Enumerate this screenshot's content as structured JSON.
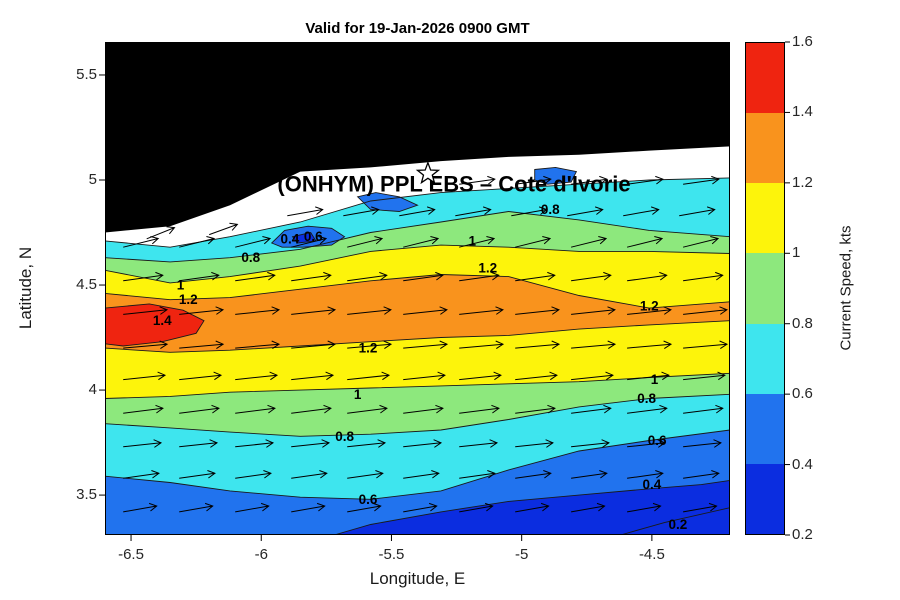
{
  "chart_data": {
    "type": "filled_contour_with_quiver",
    "title": "Valid for 19-Jan-2026 0900 GMT",
    "xlabel": "Longitude, E",
    "ylabel": "Latitude, N",
    "xlim": [
      -6.6,
      -4.2
    ],
    "ylim": [
      3.31,
      5.657
    ],
    "x_ticks": [
      -6.5,
      -6,
      -5.5,
      -5,
      -4.5
    ],
    "y_ticks": [
      5.5,
      5,
      4.5,
      4,
      3.5
    ],
    "grid": false,
    "land_color": "#000000",
    "levels": [
      0.2,
      0.4,
      0.6,
      0.8,
      1.0,
      1.2,
      1.4,
      1.6
    ],
    "level_colors": [
      "#0B2DE0",
      "#2173EE",
      "#3EE5EE",
      "#8DE87D",
      "#FDF40B",
      "#F9931D",
      "#EF2410"
    ],
    "colorbar": {
      "label": "Current Speed, kts",
      "range": [
        0.2,
        1.6
      ],
      "ticks": [
        1.6,
        1.4,
        1.2,
        1,
        0.8,
        0.6,
        0.4,
        0.2
      ]
    },
    "lon_samples": [
      -6.6,
      -6.35,
      -6.12,
      -5.85,
      -5.58,
      -5.31,
      -5.05,
      -4.78,
      -4.51,
      -4.2
    ],
    "contours": {
      "land_bottom": [
        4.75,
        4.78,
        4.88,
        5.04,
        5.06,
        5.09,
        5.11,
        5.12,
        5.14,
        5.16
      ],
      "data_edge": [
        4.71,
        4.68,
        4.73,
        4.8,
        4.9,
        4.94,
        4.96,
        4.98,
        5.0,
        5.01
      ],
      "c08_upper": [
        4.63,
        4.61,
        4.63,
        4.67,
        4.75,
        4.8,
        4.85,
        4.81,
        4.76,
        4.73
      ],
      "c10_upper": [
        4.57,
        4.51,
        4.54,
        4.59,
        4.66,
        4.69,
        4.68,
        4.66,
        4.66,
        4.65
      ],
      "c12_upper": [
        4.46,
        4.43,
        4.44,
        4.48,
        4.52,
        4.55,
        4.54,
        4.45,
        4.39,
        4.42
      ],
      "c12_lower": [
        4.2,
        4.18,
        4.19,
        4.21,
        4.23,
        4.25,
        4.26,
        4.29,
        4.31,
        4.33
      ],
      "c10_lower": [
        3.96,
        3.97,
        3.99,
        4.0,
        4.01,
        4.02,
        4.03,
        4.04,
        4.06,
        4.08
      ],
      "c08_lower": [
        3.84,
        3.82,
        3.8,
        3.78,
        3.79,
        3.81,
        3.86,
        3.92,
        3.96,
        3.98
      ],
      "c06_lower": [
        3.59,
        3.56,
        3.52,
        3.49,
        3.48,
        3.52,
        3.62,
        3.71,
        3.76,
        3.81
      ]
    },
    "bands": [
      {
        "top": "data_edge",
        "bottom": "c08_upper",
        "color": 2
      },
      {
        "top": "c08_upper",
        "bottom": "c10_upper",
        "color": 3
      },
      {
        "top": "c10_upper",
        "bottom": "c12_upper",
        "color": 4
      },
      {
        "top": "c12_upper",
        "bottom": "c12_lower",
        "color": 5
      },
      {
        "top": "c12_lower",
        "bottom": "c10_lower",
        "color": 4
      },
      {
        "top": "c10_lower",
        "bottom": "c08_lower",
        "color": 3
      },
      {
        "top": "c08_lower",
        "bottom": "c06_lower",
        "color": 2
      },
      {
        "top": "c06_lower",
        "bottom": null,
        "color": 1
      }
    ],
    "regions": {
      "low_speed_bottom": [
        [
          -5.72,
          3.31
        ],
        [
          -5.58,
          3.36
        ],
        [
          -5.31,
          3.42
        ],
        [
          -5.05,
          3.47
        ],
        [
          -4.78,
          3.5
        ],
        [
          -4.51,
          3.53
        ],
        [
          -4.31,
          3.55
        ],
        [
          -4.2,
          3.57
        ],
        [
          -4.2,
          3.31
        ]
      ],
      "red_core": [
        [
          -6.6,
          4.39
        ],
        [
          -6.43,
          4.41
        ],
        [
          -6.3,
          4.38
        ],
        [
          -6.22,
          4.33
        ],
        [
          -6.25,
          4.27
        ],
        [
          -6.38,
          4.23
        ],
        [
          -6.53,
          4.21
        ],
        [
          -6.6,
          4.22
        ]
      ],
      "blue_pockets": [
        [
          [
            -5.96,
            4.7
          ],
          [
            -5.91,
            4.76
          ],
          [
            -5.82,
            4.78
          ],
          [
            -5.73,
            4.77
          ],
          [
            -5.68,
            4.73
          ],
          [
            -5.73,
            4.69
          ],
          [
            -5.84,
            4.68
          ],
          [
            -5.92,
            4.68
          ]
        ],
        [
          [
            -5.63,
            4.92
          ],
          [
            -5.56,
            4.94
          ],
          [
            -5.47,
            4.92
          ],
          [
            -5.4,
            4.88
          ],
          [
            -5.47,
            4.85
          ],
          [
            -5.58,
            4.86
          ]
        ],
        [
          [
            -4.95,
            5.05
          ],
          [
            -4.87,
            5.06
          ],
          [
            -4.79,
            5.04
          ],
          [
            -4.81,
            4.99
          ],
          [
            -4.9,
            4.98
          ],
          [
            -4.95,
            5.0
          ]
        ]
      ],
      "pocket_core": [
        [
          -5.88,
          4.73
        ],
        [
          -5.81,
          4.75
        ],
        [
          -5.79,
          4.71
        ],
        [
          -5.86,
          4.7
        ]
      ],
      "c02_line": [
        [
          -4.62,
          3.31
        ],
        [
          -4.45,
          3.37
        ],
        [
          -4.2,
          3.44
        ]
      ]
    },
    "contour_labels": [
      {
        "text": "0.8",
        "lon": -4.89,
        "lat": 4.86
      },
      {
        "text": "0.4",
        "lon": -5.89,
        "lat": 4.72
      },
      {
        "text": "0.6",
        "lon": -5.8,
        "lat": 4.73
      },
      {
        "text": "0.8",
        "lon": -6.04,
        "lat": 4.63
      },
      {
        "text": "1",
        "lon": -5.19,
        "lat": 4.71
      },
      {
        "text": "1.2",
        "lon": -5.13,
        "lat": 4.58
      },
      {
        "text": "1",
        "lon": -6.31,
        "lat": 4.5
      },
      {
        "text": "1.2",
        "lon": -6.28,
        "lat": 4.43
      },
      {
        "text": "1.4",
        "lon": -6.38,
        "lat": 4.33
      },
      {
        "text": "1.2",
        "lon": -4.51,
        "lat": 4.4
      },
      {
        "text": "1.2",
        "lon": -5.59,
        "lat": 4.2
      },
      {
        "text": "1",
        "lon": -5.63,
        "lat": 3.98
      },
      {
        "text": "1",
        "lon": -4.49,
        "lat": 4.05
      },
      {
        "text": "0.8",
        "lon": -4.52,
        "lat": 3.96
      },
      {
        "text": "0.8",
        "lon": -5.68,
        "lat": 3.78
      },
      {
        "text": "0.6",
        "lon": -4.48,
        "lat": 3.76
      },
      {
        "text": "0.6",
        "lon": -5.59,
        "lat": 3.48
      },
      {
        "text": "0.4",
        "lon": -4.5,
        "lat": 3.55
      },
      {
        "text": "0.2",
        "lon": -4.4,
        "lat": 3.36
      }
    ],
    "annotation": {
      "text": "(ONHYM) PPL EBS  – Cote d'Ivorie",
      "lon": -5.26,
      "lat": 4.98
    },
    "star": {
      "lon": -5.36,
      "lat": 5.03
    },
    "quiver": {
      "color": "#000000",
      "lon_step": 0.215,
      "rows": [
        {
          "lat": 4.98,
          "lon0": -5.24,
          "n": 5,
          "angle": -8,
          "len": 36
        },
        {
          "lat": 4.83,
          "lon0": -5.9,
          "n": 8,
          "angle": -10,
          "len": 36
        },
        {
          "lat": 4.68,
          "lon0": -6.53,
          "n": 11,
          "angle": -14,
          "len": 36
        },
        {
          "lat": 4.52,
          "lon0": -6.53,
          "n": 11,
          "angle": -8,
          "len": 40
        },
        {
          "lat": 4.36,
          "lon0": -6.53,
          "n": 11,
          "angle": -6,
          "len": 44
        },
        {
          "lat": 4.2,
          "lon0": -6.53,
          "n": 11,
          "angle": -5,
          "len": 44
        },
        {
          "lat": 4.05,
          "lon0": -6.53,
          "n": 11,
          "angle": -6,
          "len": 42
        },
        {
          "lat": 3.89,
          "lon0": -6.53,
          "n": 11,
          "angle": -7,
          "len": 40
        },
        {
          "lat": 3.73,
          "lon0": -6.53,
          "n": 11,
          "angle": -6,
          "len": 38
        },
        {
          "lat": 3.58,
          "lon0": -6.53,
          "n": 11,
          "angle": -8,
          "len": 36
        },
        {
          "lat": 3.42,
          "lon0": -6.53,
          "n": 11,
          "angle": -10,
          "len": 34
        }
      ],
      "extra": [
        {
          "lon": -6.44,
          "lat": 4.72,
          "angle": -22,
          "len": 30
        },
        {
          "lon": -6.2,
          "lat": 4.74,
          "angle": -20,
          "len": 30
        }
      ]
    }
  }
}
